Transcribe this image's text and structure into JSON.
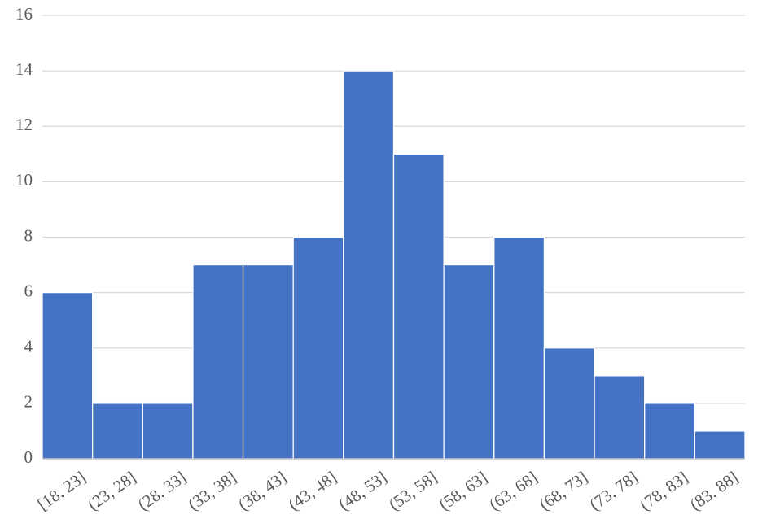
{
  "chart_data": {
    "type": "bar",
    "categories": [
      "[18, 23]",
      "(23, 28]",
      "(28, 33]",
      "(33, 38]",
      "(38, 43]",
      "(43, 48]",
      "(48, 53]",
      "(53, 58]",
      "(58, 63]",
      "(63, 68]",
      "(68, 73]",
      "(73, 78]",
      "(78, 83]",
      "(83, 88]"
    ],
    "values": [
      6,
      2,
      2,
      7,
      7,
      8,
      14,
      11,
      7,
      8,
      4,
      3,
      2,
      1
    ],
    "color": "#4472c4",
    "ylim": [
      0,
      16
    ],
    "yticks": [
      0,
      2,
      4,
      6,
      8,
      10,
      12,
      14,
      16
    ],
    "grid": true
  }
}
